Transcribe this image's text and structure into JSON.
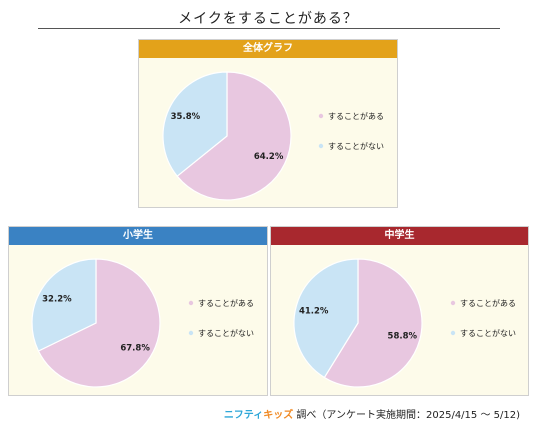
{
  "title": "メイクをすることがある？",
  "colors": {
    "yes": "#e8c7e0",
    "no": "#c9e4f5",
    "panel_bg": "#fdfbea"
  },
  "legend": {
    "yes": "することがある",
    "no": "することがない"
  },
  "chart_data": [
    {
      "type": "pie",
      "title": "全体グラフ",
      "header_color": "#e3a21a",
      "categories": [
        "することがある",
        "することがない"
      ],
      "values": [
        64.2,
        35.8
      ],
      "labels": [
        "64.2%",
        "35.8%"
      ]
    },
    {
      "type": "pie",
      "title": "小学生",
      "header_color": "#3a82c3",
      "categories": [
        "することがある",
        "することがない"
      ],
      "values": [
        67.8,
        32.2
      ],
      "labels": [
        "67.8%",
        "32.2%"
      ]
    },
    {
      "type": "pie",
      "title": "中学生",
      "header_color": "#a8282e",
      "categories": [
        "することがある",
        "することがない"
      ],
      "values": [
        58.8,
        41.2
      ],
      "labels": [
        "58.8%",
        "41.2%"
      ]
    }
  ],
  "footer": {
    "logo_part1": "ニフティ",
    "logo_part2": "キッズ",
    "text": "調べ（アンケート実施期間：2025/4/15 ～ 5/12)"
  }
}
